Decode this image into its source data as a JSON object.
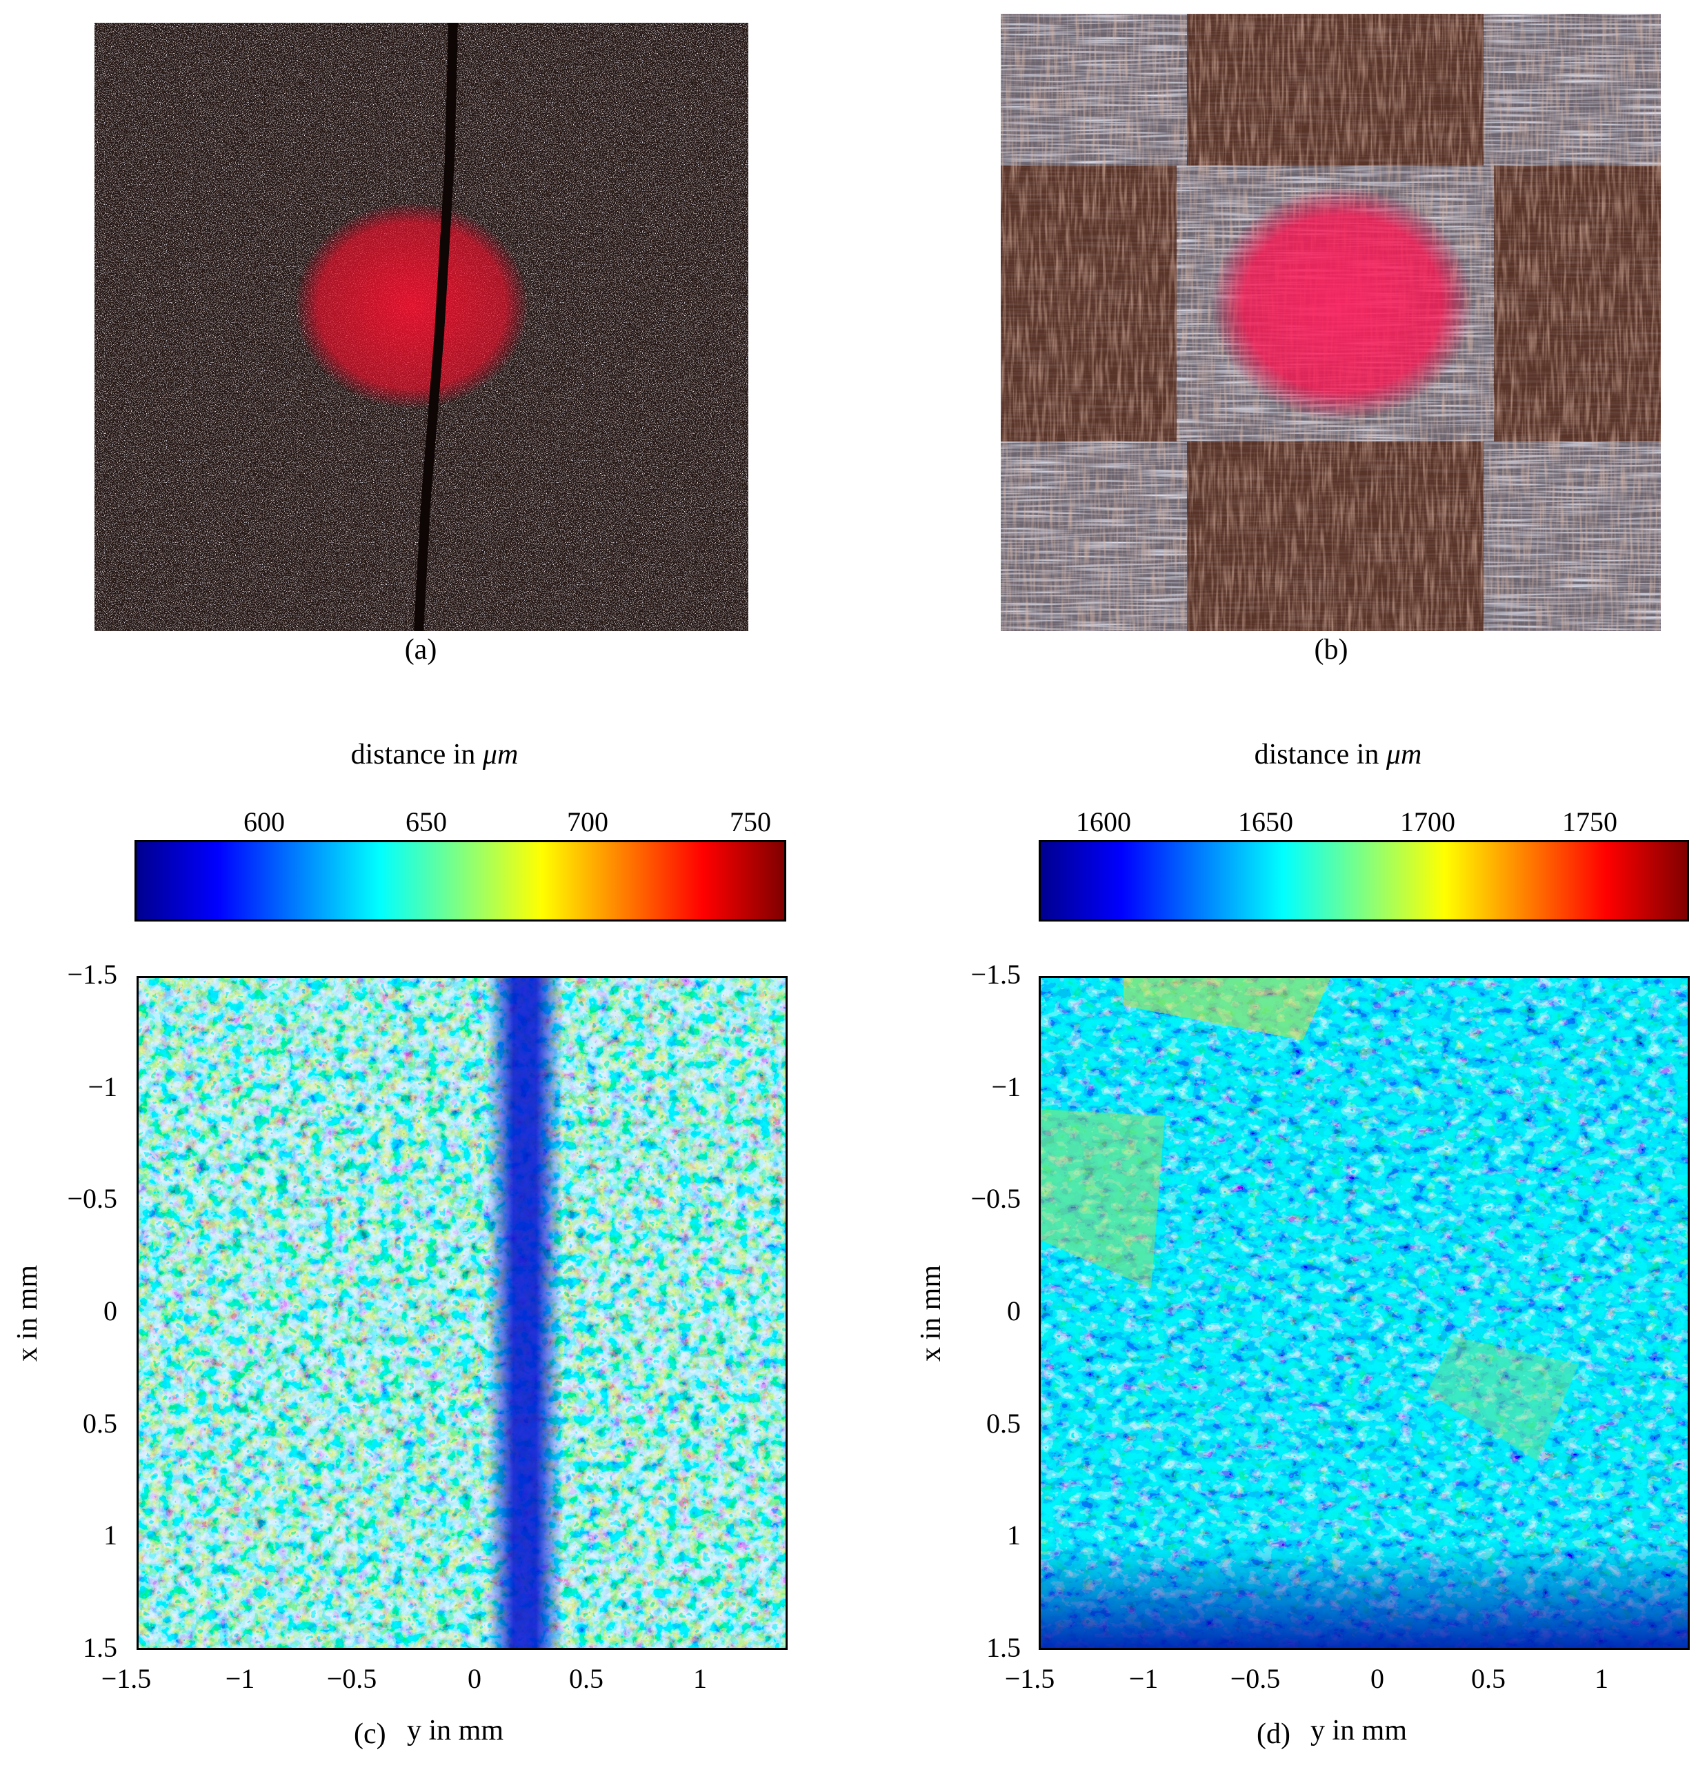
{
  "panels": {
    "a": {
      "caption": "(a)"
    },
    "b": {
      "caption": "(b)"
    },
    "c": {
      "caption": "(c)",
      "colorbar_title": "distance in ",
      "colorbar_unit": "μm",
      "colorbar_ticks": [
        "600",
        "650",
        "700",
        "750"
      ],
      "ylabel": "x in mm",
      "xlabel": "y in mm",
      "yticks": [
        "−1.5",
        "−1",
        "−0.5",
        "0",
        "0.5",
        "1",
        "1.5"
      ],
      "xticks": [
        "−1.5",
        "−1",
        "−0.5",
        "0",
        "0.5",
        "1"
      ]
    },
    "d": {
      "caption": "(d)",
      "colorbar_title": "distance in ",
      "colorbar_unit": "μm",
      "colorbar_ticks": [
        "1600",
        "1650",
        "1700",
        "1750"
      ],
      "ylabel": "x in mm",
      "xlabel": "y in mm",
      "yticks": [
        "−1.5",
        "−1",
        "−0.5",
        "0",
        "0.5",
        "1",
        "1.5"
      ],
      "xticks": [
        "−1.5",
        "−1",
        "−0.5",
        "0",
        "0.5",
        "1"
      ]
    }
  },
  "colormap": "jet",
  "chart_data": [
    {
      "type": "heatmap",
      "panel": "c",
      "colormap": "jet",
      "colorbar_label": "distance in μm",
      "colorbar_range": [
        560,
        760
      ],
      "colorbar_ticks": [
        600,
        650,
        700,
        750
      ],
      "xlabel": "y in mm",
      "ylabel": "x in mm",
      "xlim": [
        -1.5,
        1.4
      ],
      "ylim": [
        -1.5,
        1.5
      ]
    },
    {
      "type": "heatmap",
      "panel": "d",
      "colormap": "jet",
      "colorbar_label": "distance in μm",
      "colorbar_range": [
        1580,
        1780
      ],
      "colorbar_ticks": [
        1600,
        1650,
        1700,
        1750
      ],
      "xlabel": "y in mm",
      "ylabel": "x in mm",
      "xlim": [
        -1.5,
        1.4
      ],
      "ylim": [
        -1.5,
        1.5
      ]
    }
  ]
}
